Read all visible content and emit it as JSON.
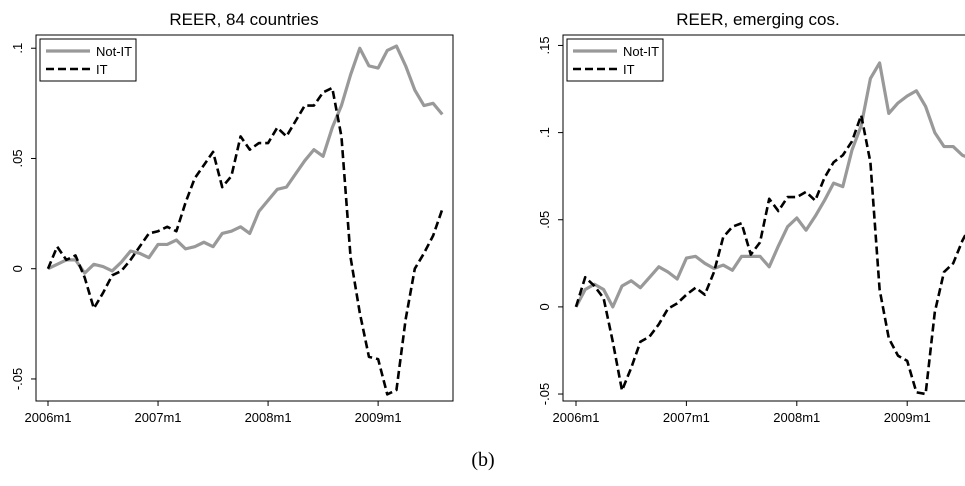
{
  "chart_data": [
    {
      "type": "line",
      "title": "REER, 84 countries",
      "categories": [
        "2006m1",
        null,
        null,
        null,
        null,
        null,
        null,
        null,
        null,
        null,
        null,
        null,
        "2007m1",
        null,
        null,
        null,
        null,
        null,
        null,
        null,
        null,
        null,
        null,
        null,
        "2008m1",
        null,
        null,
        null,
        null,
        null,
        null,
        null,
        null,
        null,
        null,
        null,
        "2009m1",
        null,
        null,
        null,
        null,
        null,
        null,
        null
      ],
      "series": [
        {
          "name": "Not-IT",
          "color": "#999999",
          "style": "solid",
          "values": [
            0,
            0.002,
            0.004,
            0.004,
            -0.002,
            0.002,
            0.001,
            -0.001,
            0.003,
            0.008,
            0.007,
            0.005,
            0.011,
            0.011,
            0.013,
            0.009,
            0.01,
            0.012,
            0.01,
            0.016,
            0.017,
            0.019,
            0.016,
            0.026,
            0.031,
            0.036,
            0.037,
            0.043,
            0.049,
            0.054,
            0.051,
            0.064,
            0.074,
            0.088,
            0.1,
            0.092,
            0.091,
            0.099,
            0.101,
            0.092,
            0.081,
            0.074,
            0.075,
            0.07
          ]
        },
        {
          "name": "IT",
          "color": "#000000",
          "style": "dashed",
          "values": [
            0,
            0.01,
            0.004,
            0.006,
            -0.004,
            -0.018,
            -0.011,
            -0.003,
            -0.001,
            0.004,
            0.01,
            0.016,
            0.017,
            0.019,
            0.017,
            0.03,
            0.041,
            0.047,
            0.053,
            0.037,
            0.042,
            0.06,
            0.054,
            0.057,
            0.057,
            0.064,
            0.06,
            0.067,
            0.074,
            0.074,
            0.08,
            0.082,
            0.06,
            0.005,
            -0.02,
            -0.04,
            -0.041,
            -0.057,
            -0.055,
            -0.023,
            0.0,
            0.007,
            0.015,
            0.027
          ]
        }
      ],
      "ylim": [
        -0.06,
        0.106
      ],
      "yticks": [
        {
          "value": -0.05,
          "label": "-.05"
        },
        0,
        {
          "value": 0.05,
          "label": ".05"
        },
        {
          "value": 0.1,
          "label": ".1"
        }
      ],
      "legend": "top-left",
      "grid": false
    },
    {
      "type": "line",
      "title": "REER, emerging cos.",
      "categories": [
        "2006m1",
        null,
        null,
        null,
        null,
        null,
        null,
        null,
        null,
        null,
        null,
        null,
        "2007m1",
        null,
        null,
        null,
        null,
        null,
        null,
        null,
        null,
        null,
        null,
        null,
        "2008m1",
        null,
        null,
        null,
        null,
        null,
        null,
        null,
        null,
        null,
        null,
        null,
        "2009m1",
        null,
        null,
        null,
        null,
        null,
        null,
        null
      ],
      "series": [
        {
          "name": "Not-IT",
          "color": "#999999",
          "style": "solid",
          "values": [
            0,
            0.01,
            0.013,
            0.01,
            0.0,
            0.012,
            0.015,
            0.011,
            0.017,
            0.023,
            0.02,
            0.016,
            0.028,
            0.029,
            0.025,
            0.022,
            0.024,
            0.021,
            0.029,
            0.029,
            0.029,
            0.023,
            0.035,
            0.046,
            0.051,
            0.044,
            0.052,
            0.061,
            0.071,
            0.069,
            0.09,
            0.104,
            0.131,
            0.14,
            0.111,
            0.117,
            0.121,
            0.124,
            0.115,
            0.1,
            0.092,
            0.092,
            0.087,
            0.085
          ]
        },
        {
          "name": "IT",
          "color": "#000000",
          "style": "dashed",
          "values": [
            0,
            0.017,
            0.012,
            0.005,
            -0.02,
            -0.048,
            -0.035,
            -0.02,
            -0.017,
            -0.01,
            -0.001,
            0.002,
            0.007,
            0.011,
            0.007,
            0.02,
            0.04,
            0.046,
            0.048,
            0.03,
            0.037,
            0.062,
            0.055,
            0.063,
            0.063,
            0.066,
            0.061,
            0.074,
            0.083,
            0.087,
            0.095,
            0.11,
            0.083,
            0.01,
            -0.018,
            -0.028,
            -0.031,
            -0.049,
            -0.05,
            -0.003,
            0.02,
            0.025,
            0.038,
            0.048
          ]
        }
      ],
      "ylim": [
        -0.054,
        0.156
      ],
      "yticks": [
        {
          "value": -0.05,
          "label": "-.05"
        },
        0,
        {
          "value": 0.05,
          "label": ".05"
        },
        {
          "value": 0.1,
          "label": ".1"
        },
        {
          "value": 0.15,
          "label": ".15"
        }
      ],
      "legend": "top-left",
      "grid": false
    }
  ],
  "caption": "(b)"
}
